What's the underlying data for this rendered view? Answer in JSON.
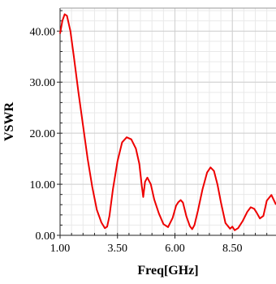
{
  "chart_data": {
    "type": "line",
    "xlabel": "Freq[GHz]",
    "ylabel": "VSWR",
    "xlim": [
      1.0,
      10.4
    ],
    "ylim": [
      0.0,
      44.5
    ],
    "xticks": [
      1.0,
      3.5,
      6.0,
      8.5
    ],
    "xtick_labels": [
      "1.00",
      "3.50",
      "6.00",
      "8.50"
    ],
    "yticks": [
      0.0,
      10.0,
      20.0,
      30.0,
      40.0
    ],
    "ytick_labels": [
      "0.00",
      "10.00",
      "20.00",
      "30.00",
      "40.00"
    ],
    "grid": true,
    "series": [
      {
        "color": "#ee0000",
        "x": [
          1.0,
          1.1,
          1.2,
          1.3,
          1.45,
          1.6,
          1.8,
          2.0,
          2.2,
          2.4,
          2.6,
          2.8,
          2.95,
          3.05,
          3.15,
          3.3,
          3.5,
          3.7,
          3.9,
          4.1,
          4.3,
          4.45,
          4.55,
          4.62,
          4.7,
          4.8,
          4.95,
          5.1,
          5.3,
          5.5,
          5.7,
          5.9,
          6.05,
          6.15,
          6.25,
          6.35,
          6.5,
          6.65,
          6.75,
          6.85,
          7.0,
          7.2,
          7.4,
          7.55,
          7.7,
          7.85,
          8.0,
          8.2,
          8.4,
          8.5,
          8.6,
          8.75,
          8.95,
          9.15,
          9.3,
          9.45,
          9.55,
          9.7,
          9.85,
          10.0,
          10.2,
          10.4
        ],
        "y": [
          39.5,
          42.0,
          43.3,
          43.0,
          40.0,
          35.0,
          28.0,
          21.5,
          15.0,
          9.5,
          5.0,
          2.5,
          1.4,
          1.7,
          3.8,
          9.0,
          14.5,
          18.2,
          19.2,
          18.8,
          17.0,
          14.0,
          10.0,
          7.5,
          10.5,
          11.3,
          10.0,
          7.0,
          4.3,
          2.2,
          1.6,
          3.4,
          5.8,
          6.5,
          6.9,
          6.4,
          3.7,
          1.8,
          1.2,
          2.0,
          4.8,
          9.0,
          12.3,
          13.3,
          12.6,
          10.0,
          6.5,
          2.4,
          1.3,
          1.7,
          1.0,
          1.4,
          2.8,
          4.6,
          5.5,
          5.2,
          4.5,
          3.3,
          3.8,
          6.8,
          7.9,
          6.0
        ]
      }
    ]
  }
}
